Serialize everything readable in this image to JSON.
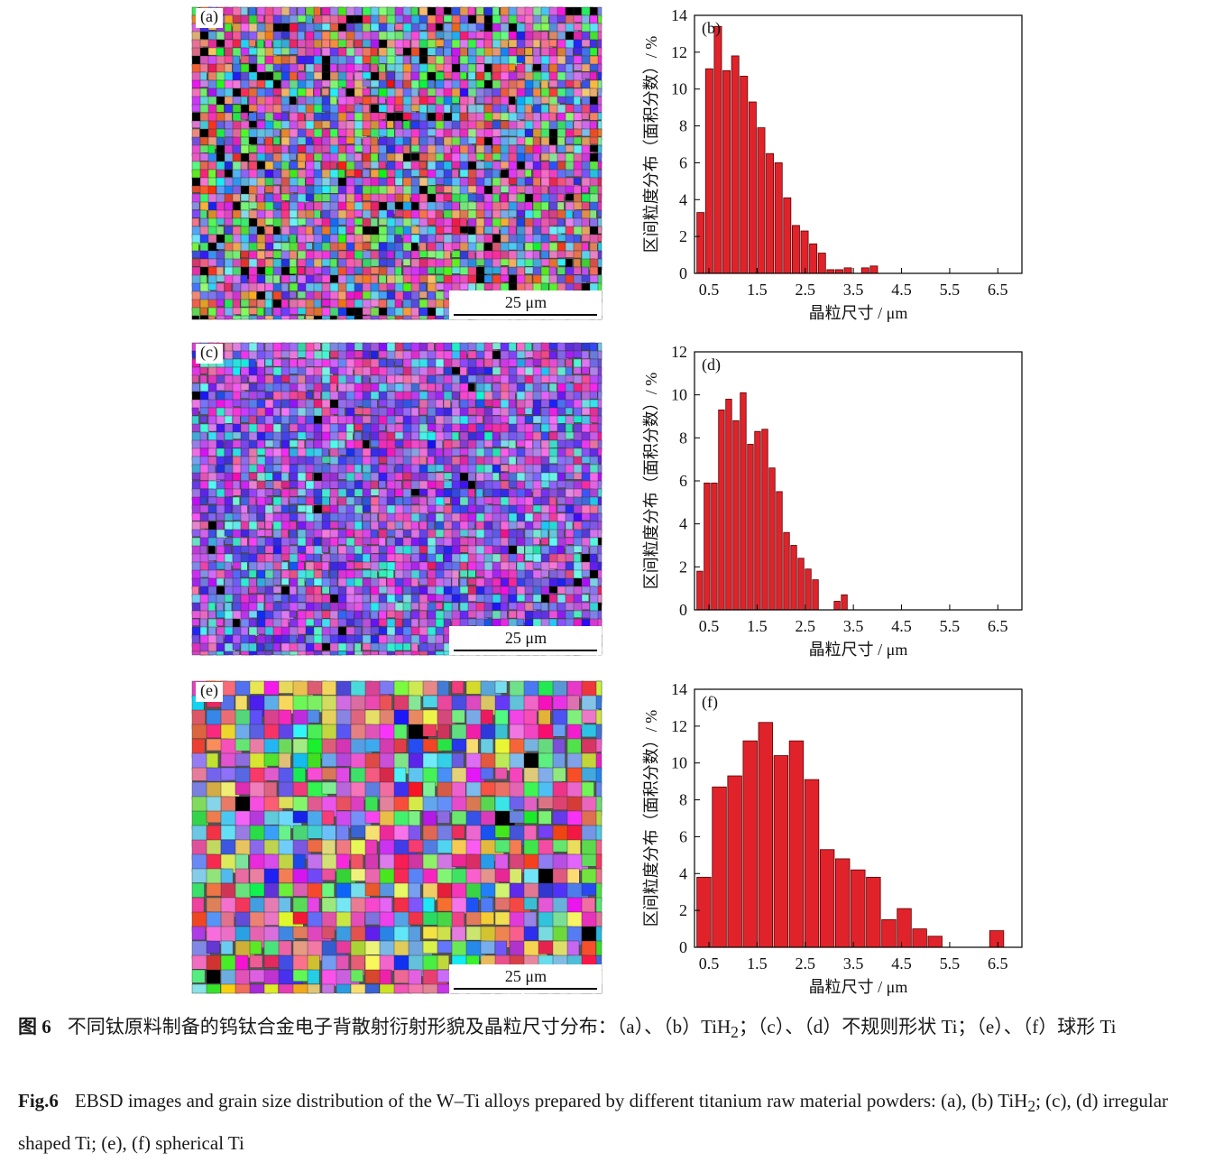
{
  "panels": [
    {
      "label": "(a)",
      "scale_bar": "25 μm"
    },
    {
      "label": "(c)",
      "scale_bar": "25 μm"
    },
    {
      "label": "(e)",
      "scale_bar": "25 μm"
    }
  ],
  "chart_data": [
    {
      "type": "histogram",
      "panel_label": "(b)",
      "x_label": "晶粒尺寸 / μm",
      "y_label": "区间粒度分布（面积分数）/ %",
      "color": "#e0232b",
      "bins": [
        0.25,
        0.43,
        0.61,
        0.79,
        0.97,
        1.15,
        1.33,
        1.51,
        1.69,
        1.87,
        2.05,
        2.23,
        2.41,
        2.59,
        2.77,
        2.95,
        3.13,
        3.31,
        3.49,
        3.67,
        3.85,
        4.03
      ],
      "values": [
        3.3,
        11.1,
        13.4,
        11.0,
        11.8,
        10.7,
        9.3,
        7.9,
        6.5,
        6.0,
        4.1,
        2.6,
        2.3,
        1.6,
        1.1,
        0.2,
        0.2,
        0.3,
        0,
        0.3,
        0.4
      ],
      "xlim": [
        0.2,
        7.0
      ],
      "xticks": [
        0.5,
        1.5,
        2.5,
        3.5,
        4.5,
        5.5,
        6.5
      ],
      "ylim": [
        0,
        14
      ],
      "yticks": [
        0,
        2,
        4,
        6,
        8,
        10,
        12,
        14
      ]
    },
    {
      "type": "histogram",
      "panel_label": "(d)",
      "x_label": "晶粒尺寸 / μm",
      "y_label": "区间粒度分布（面积分数）/ %",
      "color": "#e0232b",
      "bins": [
        0.25,
        0.4,
        0.55,
        0.7,
        0.85,
        1.0,
        1.15,
        1.3,
        1.45,
        1.6,
        1.75,
        1.9,
        2.05,
        2.2,
        2.35,
        2.5,
        2.65,
        2.8,
        2.95,
        3.1,
        3.25,
        3.4
      ],
      "values": [
        1.8,
        5.9,
        5.9,
        9.3,
        9.8,
        8.8,
        10.1,
        7.7,
        8.3,
        8.4,
        6.6,
        5.5,
        3.6,
        3.0,
        2.4,
        1.9,
        1.4,
        0,
        0,
        0.4,
        0.7
      ],
      "xlim": [
        0.2,
        7.0
      ],
      "xticks": [
        0.5,
        1.5,
        2.5,
        3.5,
        4.5,
        5.5,
        6.5
      ],
      "ylim": [
        0,
        12
      ],
      "yticks": [
        0,
        2,
        4,
        6,
        8,
        10,
        12
      ]
    },
    {
      "type": "histogram",
      "panel_label": "(f)",
      "x_label": "晶粒尺寸 / μm",
      "y_label": "区间粒度分布（面积分数）/ %",
      "color": "#e0232b",
      "bins": [
        0.25,
        0.57,
        0.89,
        1.21,
        1.53,
        1.85,
        2.17,
        2.49,
        2.81,
        3.13,
        3.45,
        3.77,
        4.09,
        4.41,
        4.73,
        5.05,
        5.37,
        5.69,
        6.01,
        6.33,
        6.65
      ],
      "values": [
        3.8,
        8.7,
        9.3,
        11.2,
        12.2,
        10.4,
        11.2,
        9.1,
        5.3,
        4.8,
        4.2,
        3.8,
        1.5,
        2.1,
        1.0,
        0.6,
        0,
        0,
        0,
        0.9
      ],
      "xlim": [
        0.2,
        7.0
      ],
      "xticks": [
        0.5,
        1.5,
        2.5,
        3.5,
        4.5,
        5.5,
        6.5
      ],
      "ylim": [
        0,
        14
      ],
      "yticks": [
        0,
        2,
        4,
        6,
        8,
        10,
        12,
        14
      ]
    }
  ],
  "caption": {
    "cn": {
      "label": "图 6",
      "text_1": "不同钛原料制备的钨钛合金电子背散射衍射形貌及晶粒尺寸分布：（a）、（b）TiH",
      "sub": "2",
      "text_2": "；（c）、（d）不规则形状 Ti；（e）、（f）球形 Ti"
    },
    "en": {
      "label": "Fig.6",
      "text_1": "EBSD images and grain size distribution of the W–Ti alloys prepared by different titanium raw material powders: (a), (b) TiH",
      "sub": "2",
      "text_2": "; (c), (d) irregular shaped Ti; (e), (f) spherical Ti"
    }
  }
}
